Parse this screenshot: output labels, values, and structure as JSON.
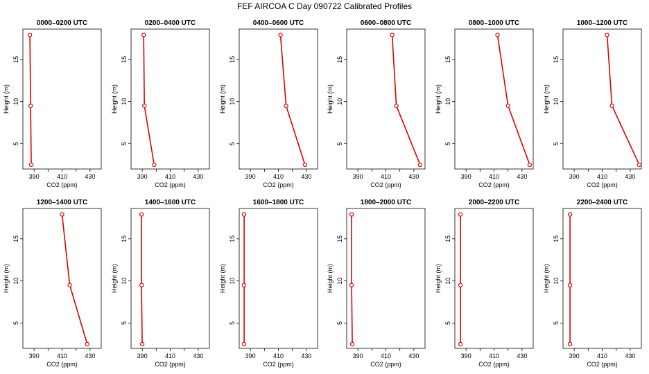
{
  "figure": {
    "title": "FEF AIRCOA C  Day 090722  Calibrated Profiles"
  },
  "colors": {
    "profile": "#dd0000",
    "axes": "#000000",
    "background": "#ffffff"
  },
  "chart_data": [
    {
      "type": "line",
      "title": "0000–0200 UTC",
      "xlabel": "CO2 (ppm)",
      "ylabel": "Height (m)",
      "xticks": [
        390,
        410,
        430
      ],
      "yticks": [
        5,
        10,
        15
      ],
      "xlim": [
        382,
        438
      ],
      "ylim": [
        2,
        18.6
      ],
      "series": [
        {
          "name": "profile",
          "x": [
            387,
            387.5,
            388
          ],
          "y": [
            17.9,
            9.5,
            2.5
          ]
        }
      ]
    },
    {
      "type": "line",
      "title": "0200–0400 UTC",
      "xlabel": "CO2 (ppm)",
      "ylabel": "Height (m)",
      "xticks": [
        390,
        410,
        430
      ],
      "yticks": [
        5,
        10,
        15
      ],
      "xlim": [
        382,
        438
      ],
      "ylim": [
        2,
        18.6
      ],
      "series": [
        {
          "name": "profile",
          "x": [
            391,
            391.5,
            398.5
          ],
          "y": [
            17.9,
            9.5,
            2.5
          ]
        }
      ]
    },
    {
      "type": "line",
      "title": "0400–0600 UTC",
      "xlabel": "CO2 (ppm)",
      "ylabel": "Height (m)",
      "xticks": [
        390,
        410,
        430
      ],
      "yticks": [
        5,
        10,
        15
      ],
      "xlim": [
        382,
        438
      ],
      "ylim": [
        2,
        18.6
      ],
      "series": [
        {
          "name": "profile",
          "x": [
            411.5,
            415.5,
            429
          ],
          "y": [
            17.9,
            9.5,
            2.5
          ]
        }
      ]
    },
    {
      "type": "line",
      "title": "0600–0800 UTC",
      "xlabel": "CO2 (ppm)",
      "ylabel": "Height (m)",
      "xticks": [
        390,
        410,
        430
      ],
      "yticks": [
        5,
        10,
        15
      ],
      "xlim": [
        382,
        438
      ],
      "ylim": [
        2,
        18.6
      ],
      "series": [
        {
          "name": "profile",
          "x": [
            414.5,
            417.5,
            434.5
          ],
          "y": [
            17.9,
            9.5,
            2.5
          ]
        }
      ]
    },
    {
      "type": "line",
      "title": "0800–1000 UTC",
      "xlabel": "CO2 (ppm)",
      "ylabel": "Height (m)",
      "xticks": [
        390,
        410,
        430
      ],
      "yticks": [
        5,
        10,
        15
      ],
      "xlim": [
        382,
        438
      ],
      "ylim": [
        2,
        18.6
      ],
      "series": [
        {
          "name": "profile",
          "x": [
            412.5,
            420,
            435.5
          ],
          "y": [
            17.9,
            9.5,
            2.5
          ]
        }
      ]
    },
    {
      "type": "line",
      "title": "1000–1200 UTC",
      "xlabel": "CO2 (ppm)",
      "ylabel": "Height (m)",
      "xticks": [
        390,
        410,
        430
      ],
      "yticks": [
        5,
        10,
        15
      ],
      "xlim": [
        382,
        438
      ],
      "ylim": [
        2,
        18.6
      ],
      "series": [
        {
          "name": "profile",
          "x": [
            413.5,
            417,
            436.5
          ],
          "y": [
            17.9,
            9.5,
            2.5
          ]
        }
      ]
    },
    {
      "type": "line",
      "title": "1200–1400 UTC",
      "xlabel": "CO2 (ppm)",
      "ylabel": "Height (m)",
      "xticks": [
        390,
        410,
        430
      ],
      "yticks": [
        5,
        10,
        15
      ],
      "xlim": [
        382,
        438
      ],
      "ylim": [
        2,
        18.6
      ],
      "series": [
        {
          "name": "profile",
          "x": [
            410,
            415.5,
            428
          ],
          "y": [
            17.9,
            9.5,
            2.5
          ]
        }
      ]
    },
    {
      "type": "line",
      "title": "1400–1600 UTC",
      "xlabel": "CO2 (ppm)",
      "ylabel": "Height (m)",
      "xticks": [
        390,
        410,
        430
      ],
      "yticks": [
        5,
        10,
        15
      ],
      "xlim": [
        382,
        438
      ],
      "ylim": [
        2,
        18.6
      ],
      "series": [
        {
          "name": "profile",
          "x": [
            389.5,
            389.5,
            390
          ],
          "y": [
            17.9,
            9.5,
            2.5
          ]
        }
      ]
    },
    {
      "type": "line",
      "title": "1600–1800 UTC",
      "xlabel": "CO2 (ppm)",
      "ylabel": "Height (m)",
      "xticks": [
        390,
        410,
        430
      ],
      "yticks": [
        5,
        10,
        15
      ],
      "xlim": [
        382,
        438
      ],
      "ylim": [
        2,
        18.6
      ],
      "series": [
        {
          "name": "profile",
          "x": [
            385.5,
            385.5,
            385.5
          ],
          "y": [
            17.9,
            9.5,
            2.5
          ]
        }
      ]
    },
    {
      "type": "line",
      "title": "1800–2000 UTC",
      "xlabel": "CO2 (ppm)",
      "ylabel": "Height (m)",
      "xticks": [
        390,
        410,
        430
      ],
      "yticks": [
        5,
        10,
        15
      ],
      "xlim": [
        382,
        438
      ],
      "ylim": [
        2,
        18.6
      ],
      "series": [
        {
          "name": "profile",
          "x": [
            385.5,
            385.5,
            386
          ],
          "y": [
            17.9,
            9.5,
            2.5
          ]
        }
      ]
    },
    {
      "type": "line",
      "title": "2000–2200 UTC",
      "xlabel": "CO2 (ppm)",
      "ylabel": "Height (m)",
      "xticks": [
        390,
        410,
        430
      ],
      "yticks": [
        5,
        10,
        15
      ],
      "xlim": [
        382,
        438
      ],
      "ylim": [
        2,
        18.6
      ],
      "series": [
        {
          "name": "profile",
          "x": [
            386,
            386,
            386
          ],
          "y": [
            17.9,
            9.5,
            2.5
          ]
        }
      ]
    },
    {
      "type": "line",
      "title": "2200–2400 UTC",
      "xlabel": "CO2 (ppm)",
      "ylabel": "Height (m)",
      "xticks": [
        390,
        410,
        430
      ],
      "yticks": [
        5,
        10,
        15
      ],
      "xlim": [
        382,
        438
      ],
      "ylim": [
        2,
        18.6
      ],
      "series": [
        {
          "name": "profile",
          "x": [
            387,
            387,
            387
          ],
          "y": [
            17.9,
            9.5,
            2.5
          ]
        }
      ]
    }
  ]
}
